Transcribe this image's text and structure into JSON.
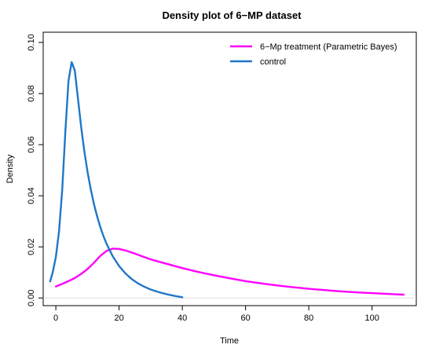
{
  "chart_data": {
    "type": "line",
    "title": "Density plot of 6−MP dataset",
    "xlabel": "Time",
    "ylabel": "Density",
    "xlim": [
      -4,
      114
    ],
    "ylim": [
      -0.003,
      0.104
    ],
    "x_ticks": [
      0,
      20,
      40,
      60,
      80,
      100
    ],
    "y_ticks": [
      0.0,
      0.02,
      0.04,
      0.06,
      0.08,
      0.1
    ],
    "y_tick_labels": [
      "0.00",
      "0.02",
      "0.04",
      "0.06",
      "0.08",
      "0.10"
    ],
    "baseline_y": 0,
    "grid": false,
    "legend_position": "top-right",
    "series": [
      {
        "name": "6−Mp treatment (Parametric Bayes)",
        "color": "#FF00FF",
        "x": [
          0,
          2,
          4,
          6,
          8,
          10,
          12,
          14,
          16,
          18,
          20,
          22,
          24,
          26,
          28,
          30,
          35,
          40,
          45,
          50,
          55,
          60,
          65,
          70,
          75,
          80,
          85,
          90,
          95,
          100,
          105,
          110
        ],
        "y": [
          0.0045,
          0.0055,
          0.0066,
          0.0078,
          0.0094,
          0.0113,
          0.0137,
          0.0164,
          0.0184,
          0.0193,
          0.0192,
          0.0186,
          0.0178,
          0.0169,
          0.016,
          0.0151,
          0.0134,
          0.0117,
          0.0102,
          0.0089,
          0.0077,
          0.0066,
          0.0057,
          0.0049,
          0.0042,
          0.0036,
          0.0031,
          0.0026,
          0.0022,
          0.0019,
          0.0016,
          0.0013
        ]
      },
      {
        "name": "control",
        "color": "#1F77C8",
        "x": [
          -1.8,
          -1,
          0,
          1,
          2,
          3,
          4,
          5,
          6,
          7,
          8,
          9,
          10,
          11,
          12,
          13,
          14,
          15,
          16,
          18,
          20,
          22,
          24,
          26,
          28,
          30,
          32,
          34,
          36,
          38,
          40
        ],
        "y": [
          0.0065,
          0.01,
          0.016,
          0.026,
          0.042,
          0.065,
          0.085,
          0.0923,
          0.089,
          0.078,
          0.067,
          0.0575,
          0.0495,
          0.0428,
          0.037,
          0.0322,
          0.028,
          0.0244,
          0.0213,
          0.0163,
          0.0125,
          0.0096,
          0.0074,
          0.0057,
          0.0044,
          0.0033,
          0.0025,
          0.0018,
          0.0012,
          0.0007,
          0.0003
        ]
      }
    ]
  }
}
